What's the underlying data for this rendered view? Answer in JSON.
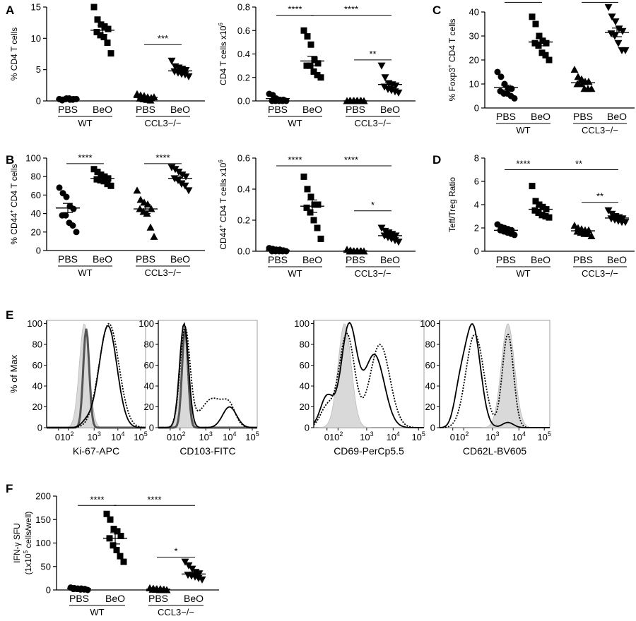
{
  "panels": {
    "A": "A",
    "B": "B",
    "C": "C",
    "D": "D",
    "E": "E",
    "F": "F"
  },
  "chart_data": [
    {
      "id": "A1",
      "type": "scatter",
      "ylabel": "% CD4 T cells",
      "ylim": [
        0,
        15
      ],
      "yticks": [
        "0",
        "5",
        "10",
        "15"
      ],
      "categories": [
        "PBS",
        "BeO",
        "PBS",
        "BeO"
      ],
      "groups": [
        "WT",
        "CCL3−/−"
      ],
      "series": [
        {
          "marker": "circle",
          "values": [
            0.3,
            0.2,
            0.4,
            0.2,
            0.3,
            0.1,
            0.3,
            0.4,
            0.2,
            0.3
          ]
        },
        {
          "marker": "square",
          "values": [
            15,
            13,
            12.2,
            11.9,
            11.5,
            11,
            10.5,
            10.2,
            9.3,
            7.6
          ]
        },
        {
          "marker": "triangle",
          "values": [
            1.1,
            0.9,
            0.8,
            0.6,
            0.5,
            0.4,
            0.3,
            0.2,
            0.1,
            0.6
          ]
        },
        {
          "marker": "tri-down",
          "values": [
            6.4,
            5.5,
            5.3,
            5.1,
            4.9,
            4.7,
            4.5,
            4.3,
            4.2,
            3.9
          ]
        }
      ],
      "means": [
        0.27,
        11.3,
        0.55,
        4.8
      ],
      "sems": [
        0.03,
        0.7,
        0.1,
        0.25
      ],
      "annotations": [
        {
          "text": "****",
          "from": 0,
          "to": 1,
          "y": 17
        },
        {
          "text": "****",
          "from": 1,
          "to": 3,
          "y": 17
        },
        {
          "text": "***",
          "from": 2,
          "to": 3,
          "y": 9
        }
      ]
    },
    {
      "id": "A2",
      "type": "scatter",
      "ylabel": "CD4 T cells x10",
      "ylabel_sup": "6",
      "ylim": [
        0,
        0.8
      ],
      "yticks": [
        "0.0",
        "0.2",
        "0.4",
        "0.6",
        "0.8"
      ],
      "categories": [
        "PBS",
        "BeO",
        "PBS",
        "BeO"
      ],
      "groups": [
        "WT",
        "CCL3−/−"
      ],
      "series": [
        {
          "marker": "circle",
          "values": [
            0.06,
            0.05,
            0.02,
            0.01,
            0.01,
            0.0,
            0.0,
            0.0,
            0.0,
            0.0
          ]
        },
        {
          "marker": "square",
          "values": [
            0.6,
            0.55,
            0.48,
            0.35,
            0.32,
            0.3,
            0.3,
            0.25,
            0.22,
            0.2
          ]
        },
        {
          "marker": "triangle",
          "values": [
            0.0,
            0.0,
            0.0,
            0.0,
            0.0,
            0.0,
            0.0,
            0.0,
            0.0,
            0.0
          ]
        },
        {
          "marker": "tri-down",
          "values": [
            0.3,
            0.2,
            0.15,
            0.14,
            0.13,
            0.12,
            0.1,
            0.09,
            0.08,
            0.07
          ]
        }
      ],
      "means": [
        0.02,
        0.34,
        0.0,
        0.14
      ],
      "sems": [
        0.006,
        0.04,
        0.0,
        0.02
      ],
      "annotations": [
        {
          "text": "****",
          "from": 0,
          "to": 1,
          "y": 0.73
        },
        {
          "text": "****",
          "from": 1,
          "to": 3,
          "y": 0.73
        },
        {
          "text": "**",
          "from": 2,
          "to": 3,
          "y": 0.35
        }
      ]
    },
    {
      "id": "C",
      "type": "scatter",
      "ylabel": "% Foxp3",
      "ylabel_sup": "+",
      "ylabel_tail": " CD4 T cells",
      "ylim": [
        0,
        40
      ],
      "yticks": [
        "0",
        "10",
        "20",
        "30",
        "40"
      ],
      "categories": [
        "PBS",
        "BeO",
        "PBS",
        "BeO"
      ],
      "groups": [
        "WT",
        "CCL3−/−"
      ],
      "series": [
        {
          "marker": "circle",
          "values": [
            15,
            13,
            10,
            8,
            8,
            7,
            6,
            6,
            5,
            4
          ]
        },
        {
          "marker": "square",
          "values": [
            38,
            35,
            30,
            28,
            27,
            27,
            26,
            23,
            22,
            20
          ]
        },
        {
          "marker": "triangle",
          "values": [
            16,
            13,
            12,
            11,
            11,
            10,
            10,
            8,
            8,
            8
          ]
        },
        {
          "marker": "tri-down",
          "values": [
            42,
            38,
            36,
            33,
            32,
            31,
            30,
            27,
            24,
            24
          ]
        }
      ],
      "means": [
        8.5,
        27.5,
        10.5,
        31.5
      ],
      "sems": [
        1,
        1.6,
        0.8,
        1.8
      ],
      "annotations": [
        {
          "text": "****",
          "from": 0,
          "to": 1,
          "y": 44
        },
        {
          "text": "****",
          "from": 2,
          "to": 3,
          "y": 44
        }
      ]
    },
    {
      "id": "B1",
      "type": "scatter",
      "ylabel": "% CD44",
      "ylabel_sup": "+",
      "ylabel_tail": " CD4 T cells",
      "ylim": [
        0,
        100
      ],
      "yticks": [
        "0",
        "20",
        "40",
        "60",
        "80",
        "100"
      ],
      "categories": [
        "PBS",
        "BeO",
        "PBS",
        "BeO"
      ],
      "groups": [
        "WT",
        "CCL3−/−"
      ],
      "series": [
        {
          "marker": "circle",
          "values": [
            68,
            62,
            58,
            48,
            45,
            38,
            38,
            30,
            27,
            20
          ]
        },
        {
          "marker": "square",
          "values": [
            88,
            85,
            82,
            80,
            78,
            77,
            76,
            75,
            72,
            70
          ]
        },
        {
          "marker": "triangle",
          "values": [
            65,
            55,
            52,
            50,
            45,
            45,
            42,
            40,
            25,
            15
          ]
        },
        {
          "marker": "tri-down",
          "values": [
            90,
            88,
            85,
            82,
            80,
            78,
            76,
            72,
            70,
            65
          ]
        }
      ],
      "means": [
        46,
        78,
        45,
        78
      ],
      "sems": [
        5,
        2,
        5,
        2.5
      ],
      "annotations": [
        {
          "text": "****",
          "from": 0,
          "to": 1,
          "y": 94
        },
        {
          "text": "****",
          "from": 2,
          "to": 3,
          "y": 94
        }
      ]
    },
    {
      "id": "B2",
      "type": "scatter",
      "ylabel": "CD44",
      "ylabel_sup": "+",
      "ylabel_tail": " CD4 T cells x10",
      "ylabel_sup2": "6",
      "ylim": [
        0,
        0.6
      ],
      "yticks": [
        "0.0",
        "0.2",
        "0.4",
        "0.6"
      ],
      "categories": [
        "PBS",
        "BeO",
        "PBS",
        "BeO"
      ],
      "groups": [
        "WT",
        "CCL3−/−"
      ],
      "series": [
        {
          "marker": "circle",
          "values": [
            0.02,
            0.015,
            0.01,
            0.01,
            0.005,
            0.0,
            0.0,
            0.0,
            0.0,
            0.0
          ]
        },
        {
          "marker": "square",
          "values": [
            0.48,
            0.4,
            0.35,
            0.3,
            0.3,
            0.28,
            0.25,
            0.2,
            0.15,
            0.08
          ]
        },
        {
          "marker": "triangle",
          "values": [
            0.01,
            0.005,
            0.0,
            0.0,
            0.0,
            0.0,
            0.0,
            0.0,
            0.0,
            0.0
          ]
        },
        {
          "marker": "tri-down",
          "values": [
            0.15,
            0.13,
            0.12,
            0.11,
            0.1,
            0.1,
            0.09,
            0.08,
            0.07,
            0.06
          ]
        }
      ],
      "means": [
        0.007,
        0.29,
        0.003,
        0.1
      ],
      "sems": [
        0.003,
        0.04,
        0.001,
        0.012
      ],
      "annotations": [
        {
          "text": "****",
          "from": 0,
          "to": 1,
          "y": 0.55
        },
        {
          "text": "****",
          "from": 1,
          "to": 3,
          "y": 0.55
        },
        {
          "text": "*",
          "from": 2,
          "to": 3,
          "y": 0.26
        }
      ]
    },
    {
      "id": "D",
      "type": "scatter",
      "ylabel": "Teff/Treg Ratio",
      "ylim": [
        0,
        8
      ],
      "yticks": [
        "0",
        "2",
        "4",
        "6",
        "8"
      ],
      "categories": [
        "PBS",
        "BeO",
        "PBS",
        "BeO"
      ],
      "groups": [
        "WT",
        "CCL3−/−"
      ],
      "series": [
        {
          "marker": "circle",
          "values": [
            2.3,
            2.1,
            2.0,
            1.9,
            1.8,
            1.8,
            1.7,
            1.6,
            1.5,
            1.4
          ]
        },
        {
          "marker": "square",
          "values": [
            5.6,
            4.3,
            4.0,
            3.8,
            3.6,
            3.5,
            3.3,
            3.1,
            3.0,
            2.9
          ]
        },
        {
          "marker": "triangle",
          "values": [
            2.2,
            2.0,
            1.9,
            1.8,
            1.8,
            1.7,
            1.6,
            1.5,
            1.5,
            1.3
          ]
        },
        {
          "marker": "tri-down",
          "values": [
            3.5,
            3.2,
            3.0,
            2.9,
            2.8,
            2.8,
            2.7,
            2.6,
            2.5,
            2.5
          ]
        }
      ],
      "means": [
        1.8,
        3.6,
        1.75,
        2.85
      ],
      "sems": [
        0.08,
        0.25,
        0.08,
        0.1
      ],
      "annotations": [
        {
          "text": "****",
          "from": 0,
          "to": 1,
          "y": 7
        },
        {
          "text": "**",
          "from": 1,
          "to": 3,
          "y": 7
        },
        {
          "text": "**",
          "from": 2,
          "to": 3,
          "y": 4.2
        }
      ]
    },
    {
      "id": "F",
      "type": "scatter",
      "ylabel": "IFN-γ SFU",
      "ylabel2": "(1x10",
      "ylabel2_sup": "5",
      "ylabel2_tail": " cells/well)",
      "ylim": [
        0,
        200
      ],
      "yticks": [
        "0",
        "50",
        "100",
        "150",
        "200"
      ],
      "categories": [
        "PBS",
        "BeO",
        "PBS",
        "BeO"
      ],
      "groups": [
        "WT",
        "CCL3−/−"
      ],
      "series": [
        {
          "marker": "circle",
          "values": [
            5,
            4,
            3,
            3,
            2,
            2,
            2,
            1,
            1,
            0
          ]
        },
        {
          "marker": "square",
          "values": [
            162,
            150,
            130,
            125,
            115,
            110,
            95,
            85,
            72,
            60
          ]
        },
        {
          "marker": "triangle",
          "values": [
            4,
            3,
            2,
            2,
            1,
            1,
            1,
            0,
            0,
            0
          ]
        },
        {
          "marker": "tri-down",
          "values": [
            60,
            52,
            45,
            38,
            35,
            32,
            30,
            28,
            25,
            22
          ]
        }
      ],
      "means": [
        2.5,
        110,
        1.5,
        34
      ],
      "sems": [
        0.5,
        12,
        0.5,
        4
      ],
      "annotations": [
        {
          "text": "****",
          "from": 0,
          "to": 1,
          "y": 180
        },
        {
          "text": "****",
          "from": 1,
          "to": 3,
          "y": 180
        },
        {
          "text": "*",
          "from": 2,
          "to": 3,
          "y": 70
        }
      ]
    }
  ],
  "histograms": {
    "ylabel": "% of Max",
    "yticks": [
      "0",
      "20",
      "40",
      "60",
      "80",
      "100"
    ],
    "xticks": [
      "0",
      "10",
      "2",
      "10",
      "3",
      "10",
      "4",
      "10",
      "5"
    ],
    "plots": [
      {
        "xlabel": "Ki-67-APC"
      },
      {
        "xlabel": "CD103-FITC"
      },
      {
        "xlabel": "CD69-PerCp5.5"
      },
      {
        "xlabel": "CD62L-BV605"
      }
    ]
  }
}
